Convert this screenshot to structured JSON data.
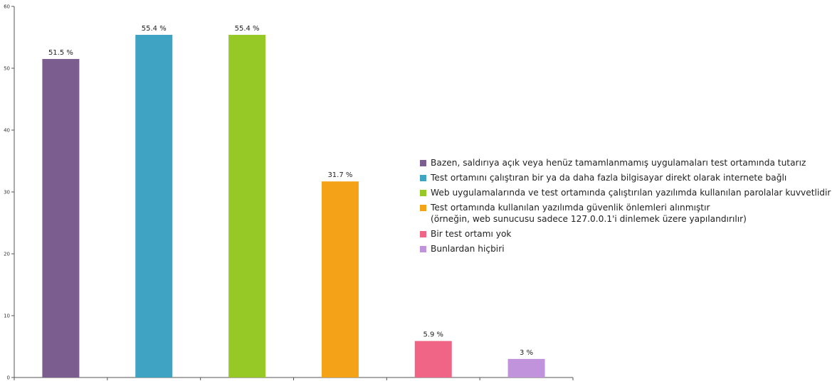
{
  "chart_data": {
    "type": "bar",
    "categories": [
      "Bazen, saldırıya açık veya henüz tamamlanmamış uygulamaları test ortamında tutarız",
      "Test ortamını çalıştıran bir ya da daha fazla bilgisayar direkt olarak internete bağlı",
      "Web uygulamalarında ve test ortamında çalıştırılan yazılımda kullanılan parolalar kuvvetlidir",
      "Test ortamında kullanılan yazılımda güvenlik önlemleri alınmıştır\n(örneğin, web sunucusu sadece 127.0.0.1'i dinlemek üzere yapılandırılır)",
      "Bir test ortamı yok",
      "Bunlardan hiçbiri"
    ],
    "values": [
      51.5,
      55.4,
      55.4,
      31.7,
      5.9,
      3
    ],
    "value_labels": [
      "51.5 %",
      "55.4 %",
      "55.4 %",
      "31.7 %",
      "5.9 %",
      "3 %"
    ],
    "colors": [
      "#7b5e8f",
      "#3fa3c4",
      "#97c926",
      "#f4a318",
      "#f06585",
      "#c093dc"
    ],
    "ylim": [
      0,
      60
    ],
    "yticks": [
      0,
      10,
      20,
      30,
      40,
      50,
      60
    ],
    "ytick_labels": [
      "0",
      "10",
      "20",
      "30",
      "40",
      "50",
      "60"
    ],
    "legend_placement": "right",
    "grid": false
  }
}
